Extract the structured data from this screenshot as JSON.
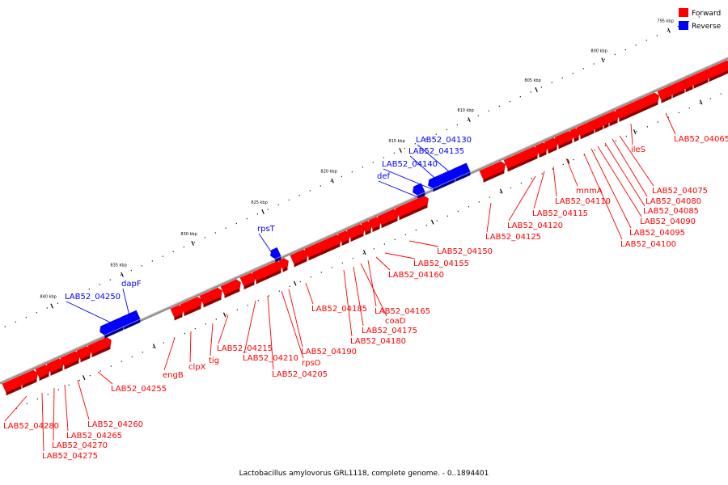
{
  "title": "Lactobacillus amylovorus GRL1118, complete genome. - 0..1894401",
  "colors": {
    "forward": "#ff0000",
    "reverse": "#0000ff",
    "axis": "#888888"
  },
  "legend": [
    {
      "label": "Forward",
      "color": "#ff0000"
    },
    {
      "label": "Reverse",
      "color": "#0000ff"
    }
  ],
  "ticks": [
    "795 kbp",
    "800 kbp",
    "805 kbp",
    "810 kbp",
    "815 kbp",
    "820 kbp",
    "825 kbp",
    "830 kbp",
    "835 kbp",
    "840 kbp"
  ],
  "forward_labels": [
    "LAB52_04065",
    "ileS",
    "LAB52_04075",
    "LAB52_04080",
    "LAB52_04085",
    "LAB52_04090",
    "LAB52_04095",
    "LAB52_04100",
    "mnmA",
    "LAB52_04110",
    "LAB52_04115",
    "LAB52_04120",
    "LAB52_04125",
    "LAB52_04150",
    "LAB52_04155",
    "LAB52_04160",
    "LAB52_04165",
    "coaD",
    "LAB52_04175",
    "LAB52_04180",
    "LAB52_04185",
    "LAB52_04190",
    "rpsO",
    "LAB52_04205",
    "LAB52_04210",
    "LAB52_04215",
    "tig",
    "clpX",
    "engB",
    "LAB52_04255",
    "LAB52_04260",
    "LAB52_04265",
    "LAB52_04270",
    "LAB52_04275",
    "LAB52_04280"
  ],
  "reverse_labels": [
    "LAB52_04130",
    "LAB52_04135",
    "LAB52_04140",
    "def",
    "rpsT",
    "dapF",
    "LAB52_04250"
  ]
}
